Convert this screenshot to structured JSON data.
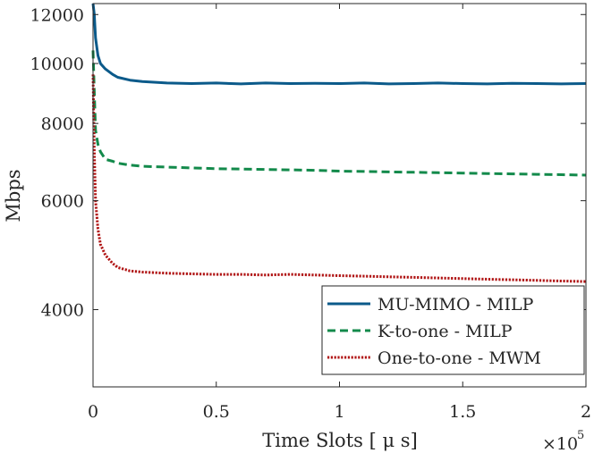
{
  "chart_data": {
    "type": "line",
    "title": "",
    "xlabel": "Time Slots [ μ s]",
    "ylabel": "Mbps",
    "x_exponent_label": "×10",
    "x_exponent_power": "5",
    "xlim": [
      0,
      2
    ],
    "ylim": [
      3000,
      12500
    ],
    "yscale": "log",
    "grid": false,
    "legend_position": "bottom-right",
    "x_ticks": [
      {
        "value": 0,
        "label": "0"
      },
      {
        "value": 0.5,
        "label": "0.5"
      },
      {
        "value": 1,
        "label": "1"
      },
      {
        "value": 1.5,
        "label": "1.5"
      },
      {
        "value": 2,
        "label": "2"
      }
    ],
    "y_ticks": [
      {
        "value": 4000,
        "label": "4000"
      },
      {
        "value": 6000,
        "label": "6000"
      },
      {
        "value": 8000,
        "label": "8000"
      },
      {
        "value": 10000,
        "label": "10000"
      },
      {
        "value": 12000,
        "label": "12000"
      }
    ],
    "series": [
      {
        "name": "MU-MIMO - MILP",
        "color": "#0b5a8a",
        "style": "solid",
        "x": [
          0,
          0.005,
          0.01,
          0.02,
          0.03,
          0.05,
          0.08,
          0.1,
          0.15,
          0.2,
          0.3,
          0.4,
          0.5,
          0.6,
          0.7,
          0.8,
          0.9,
          1.0,
          1.1,
          1.2,
          1.3,
          1.4,
          1.5,
          1.6,
          1.7,
          1.8,
          1.9,
          2.0
        ],
        "values": [
          12500,
          12000,
          11000,
          10300,
          10000,
          9800,
          9600,
          9500,
          9400,
          9350,
          9300,
          9280,
          9300,
          9270,
          9300,
          9280,
          9290,
          9280,
          9300,
          9270,
          9280,
          9300,
          9280,
          9270,
          9290,
          9280,
          9270,
          9280
        ]
      },
      {
        "name": "K-to-one - MILP",
        "color": "#138a4b",
        "style": "dashed",
        "x": [
          0,
          0.005,
          0.01,
          0.02,
          0.03,
          0.05,
          0.08,
          0.1,
          0.15,
          0.2,
          0.3,
          0.4,
          0.5,
          0.6,
          0.7,
          0.8,
          0.9,
          1.0,
          1.1,
          1.2,
          1.3,
          1.4,
          1.5,
          1.6,
          1.7,
          1.8,
          1.9,
          2.0
        ],
        "values": [
          10500,
          9000,
          7800,
          7400,
          7200,
          7000,
          6950,
          6900,
          6850,
          6820,
          6800,
          6780,
          6760,
          6750,
          6740,
          6730,
          6720,
          6700,
          6690,
          6680,
          6670,
          6660,
          6650,
          6640,
          6630,
          6620,
          6610,
          6600
        ]
      },
      {
        "name": "One-to-one - MWM",
        "color": "#b01414",
        "style": "dotted",
        "x": [
          0,
          0.005,
          0.01,
          0.02,
          0.03,
          0.05,
          0.08,
          0.1,
          0.15,
          0.2,
          0.3,
          0.4,
          0.5,
          0.6,
          0.7,
          0.8,
          0.9,
          1.0,
          1.1,
          1.2,
          1.3,
          1.4,
          1.5,
          1.6,
          1.7,
          1.8,
          1.9,
          2.0
        ],
        "values": [
          9600,
          7200,
          6000,
          5400,
          5100,
          4900,
          4750,
          4680,
          4620,
          4600,
          4580,
          4570,
          4560,
          4560,
          4550,
          4560,
          4550,
          4540,
          4530,
          4520,
          4510,
          4500,
          4490,
          4480,
          4470,
          4460,
          4450,
          4440
        ]
      }
    ]
  }
}
